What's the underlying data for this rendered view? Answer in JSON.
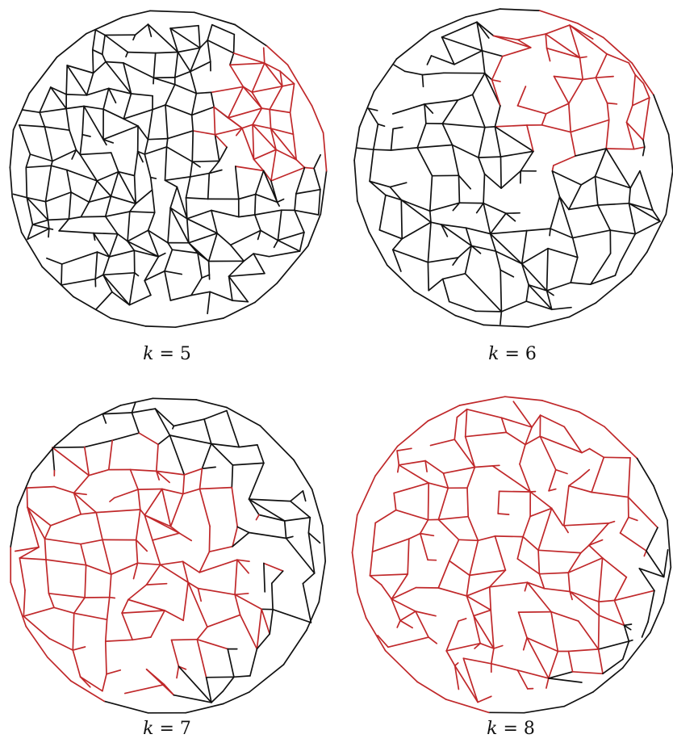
{
  "figure": {
    "panels": [
      {
        "id": "k5",
        "caption_var": "k",
        "caption_rest": " = 5",
        "seed": 11,
        "cell_spacing": "small",
        "edge_keep": 0.86,
        "red_cluster": {
          "center": [
            0.86,
            0.3
          ],
          "radius": 0.23
        }
      },
      {
        "id": "k6",
        "caption_var": "k",
        "caption_rest": " = 6",
        "seed": 23,
        "cell_spacing": "medium",
        "edge_keep": 0.78,
        "red_cluster": {
          "center": [
            0.72,
            0.22
          ],
          "radius": 0.27
        }
      },
      {
        "id": "k7",
        "caption_var": "k",
        "caption_rest": " = 7",
        "seed": 37,
        "cell_spacing": "medium",
        "edge_keep": 0.74,
        "red_cluster": {
          "center": [
            0.38,
            0.56
          ],
          "radius": 0.4
        }
      },
      {
        "id": "k8",
        "caption_var": "k",
        "caption_rest": " = 8",
        "seed": 51,
        "cell_spacing": "medium",
        "edge_keep": 0.72,
        "red_cluster": {
          "center": [
            0.32,
            0.38
          ],
          "radius": 0.62
        }
      }
    ],
    "colors": {
      "edge": "#111111",
      "highlight": "#c0282a",
      "background": "#ffffff"
    }
  }
}
